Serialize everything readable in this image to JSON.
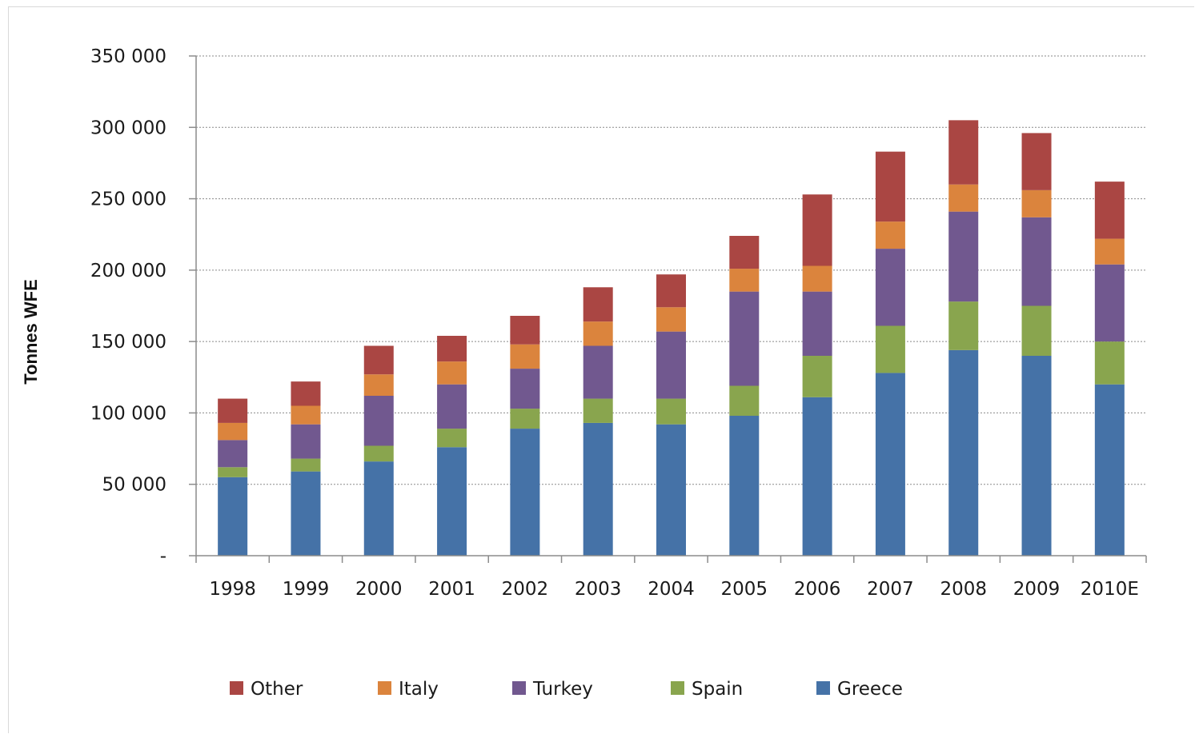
{
  "chart_data": {
    "type": "bar",
    "stacked": true,
    "categories": [
      "1998",
      "1999",
      "2000",
      "2001",
      "2002",
      "2003",
      "2004",
      "2005",
      "2006",
      "2007",
      "2008",
      "2009",
      "2010E"
    ],
    "series": [
      {
        "name": "Greece",
        "color": "#4572a7",
        "values": [
          55000,
          59000,
          66000,
          76000,
          89000,
          93000,
          92000,
          98000,
          111000,
          128000,
          144000,
          140000,
          120000
        ]
      },
      {
        "name": "Spain",
        "color": "#89a54e",
        "values": [
          7000,
          9000,
          11000,
          13000,
          14000,
          17000,
          18000,
          21000,
          29000,
          33000,
          34000,
          35000,
          30000
        ]
      },
      {
        "name": "Turkey",
        "color": "#71588f",
        "values": [
          19000,
          24000,
          35000,
          31000,
          28000,
          37000,
          47000,
          66000,
          45000,
          54000,
          63000,
          62000,
          54000
        ]
      },
      {
        "name": "Italy",
        "color": "#db843d",
        "values": [
          12000,
          13000,
          15000,
          16000,
          17000,
          17000,
          17000,
          16000,
          18000,
          19000,
          19000,
          19000,
          18000
        ]
      },
      {
        "name": "Other",
        "color": "#aa4643",
        "values": [
          17000,
          17000,
          20000,
          18000,
          20000,
          24000,
          23000,
          23000,
          50000,
          49000,
          45000,
          40000,
          40000
        ]
      }
    ],
    "yticks": [
      "-",
      "50 000",
      "100 000",
      "150 000",
      "200 000",
      "250 000",
      "300 000",
      "350 000"
    ],
    "ylim": [
      0,
      350000
    ],
    "ylabel": "Tonnes WFE",
    "xlabel": "",
    "grid": "horizontal dotted",
    "legend": {
      "placement": "bottom",
      "order": [
        "Other",
        "Italy",
        "Turkey",
        "Spain",
        "Greece"
      ]
    }
  }
}
